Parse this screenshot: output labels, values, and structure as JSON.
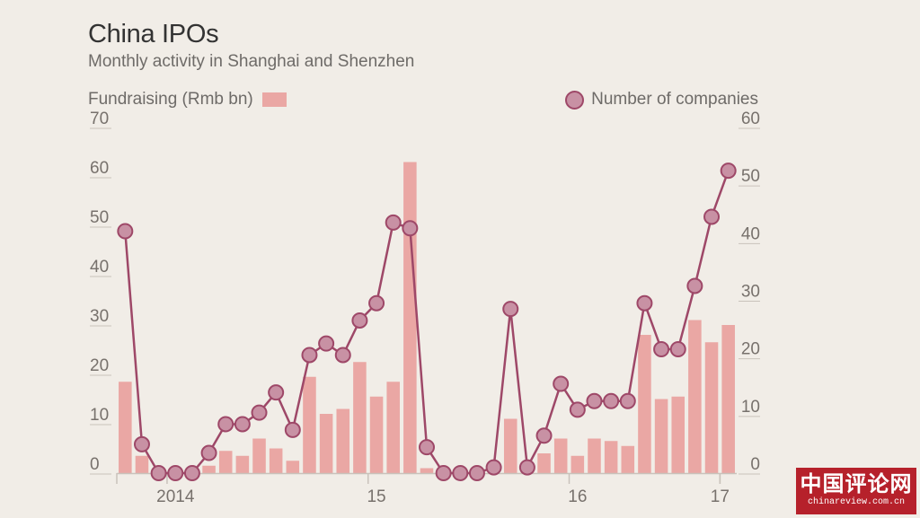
{
  "header": {
    "title": "China IPOs",
    "subtitle": "Monthly activity in Shanghai and Shenzhen"
  },
  "legend": {
    "bars_label": "Fundraising (Rmb bn)",
    "line_label": "Number of companies"
  },
  "watermark": {
    "main": "中国评论网",
    "sub": "chinareview.com.cn"
  },
  "colors": {
    "background": "#f1ede7",
    "bar": "#eaa7a4",
    "line": "#9e4868",
    "marker_fill": "#c891a4",
    "axis": "#c9c2bb"
  },
  "chart_data": {
    "type": "bar+line",
    "title": "China IPOs",
    "subtitle": "Monthly activity in Shanghai and Shenzhen",
    "x_tick_labels": [
      "2014",
      "15",
      "16",
      "17"
    ],
    "left_axis": {
      "label": "Fundraising (Rmb bn)",
      "range": [
        0,
        70
      ],
      "ticks": [
        "0",
        "10",
        "20",
        "30",
        "40",
        "50",
        "60",
        "70"
      ]
    },
    "right_axis": {
      "label": "Number of companies",
      "range": [
        0,
        60
      ],
      "ticks": [
        "0",
        "10",
        "20",
        "30",
        "40",
        "50",
        "60"
      ]
    },
    "legend_placement": "top",
    "grid": false,
    "bars": {
      "name": "Fundraising (Rmb bn)",
      "values": [
        18.5,
        3.5,
        0,
        0,
        0,
        1.5,
        4.5,
        3.5,
        7,
        5,
        2.5,
        19.5,
        12,
        13,
        22.5,
        15.5,
        18.5,
        63,
        1,
        0,
        0,
        0,
        0,
        11,
        1,
        4,
        7,
        3.5,
        7,
        6.5,
        5.5,
        28,
        15,
        15.5,
        31,
        26.5,
        30
      ]
    },
    "line": {
      "name": "Number of companies",
      "values": [
        42,
        5,
        0,
        0,
        0,
        3.5,
        8.5,
        8.5,
        10.5,
        14,
        7.5,
        20.5,
        22.5,
        20.5,
        26.5,
        29.5,
        43.5,
        42.5,
        4.5,
        0,
        0,
        0,
        1,
        28.5,
        1,
        6.5,
        15.5,
        11,
        12.5,
        12.5,
        12.5,
        29.5,
        21.5,
        21.5,
        32.5,
        44.5,
        52.5
      ]
    },
    "year_starts": [
      {
        "label": "2014",
        "index": 3
      },
      {
        "label": "15",
        "index": 15
      },
      {
        "label": "16",
        "index": 27
      },
      {
        "label": "17",
        "index": 36
      }
    ]
  }
}
